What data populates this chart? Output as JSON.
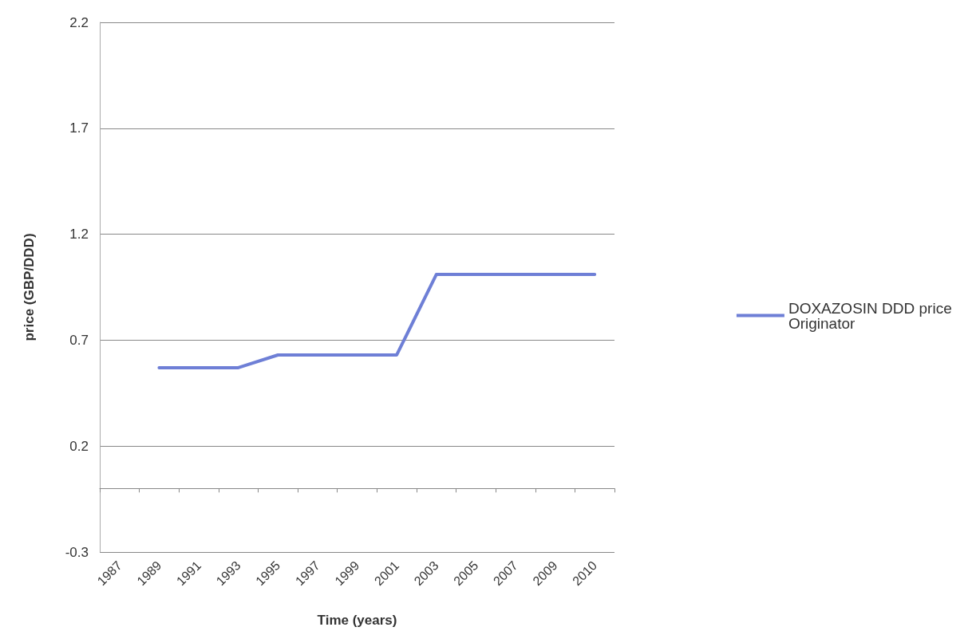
{
  "chart_data": {
    "type": "line",
    "xlabel": "Time (years)",
    "ylabel": "price (GBP/DDD)",
    "categories": [
      "1987",
      "1989",
      "1991",
      "1993",
      "1995",
      "1997",
      "1999",
      "2001",
      "2003",
      "2005",
      "2007",
      "2009",
      "2010"
    ],
    "series": [
      {
        "name": "DOXAZOSIN DDD price Originator",
        "color": "#6e7fd6",
        "values": [
          null,
          0.57,
          0.57,
          0.57,
          0.63,
          0.63,
          0.63,
          0.63,
          1.01,
          1.01,
          1.01,
          1.01,
          1.01
        ]
      }
    ],
    "ylim": [
      -0.3,
      2.2
    ],
    "yticks": [
      -0.3,
      0.2,
      0.7,
      1.2,
      1.7,
      2.2
    ],
    "grid": "y",
    "legend": "right",
    "marker": "none",
    "line_style": "solid"
  }
}
